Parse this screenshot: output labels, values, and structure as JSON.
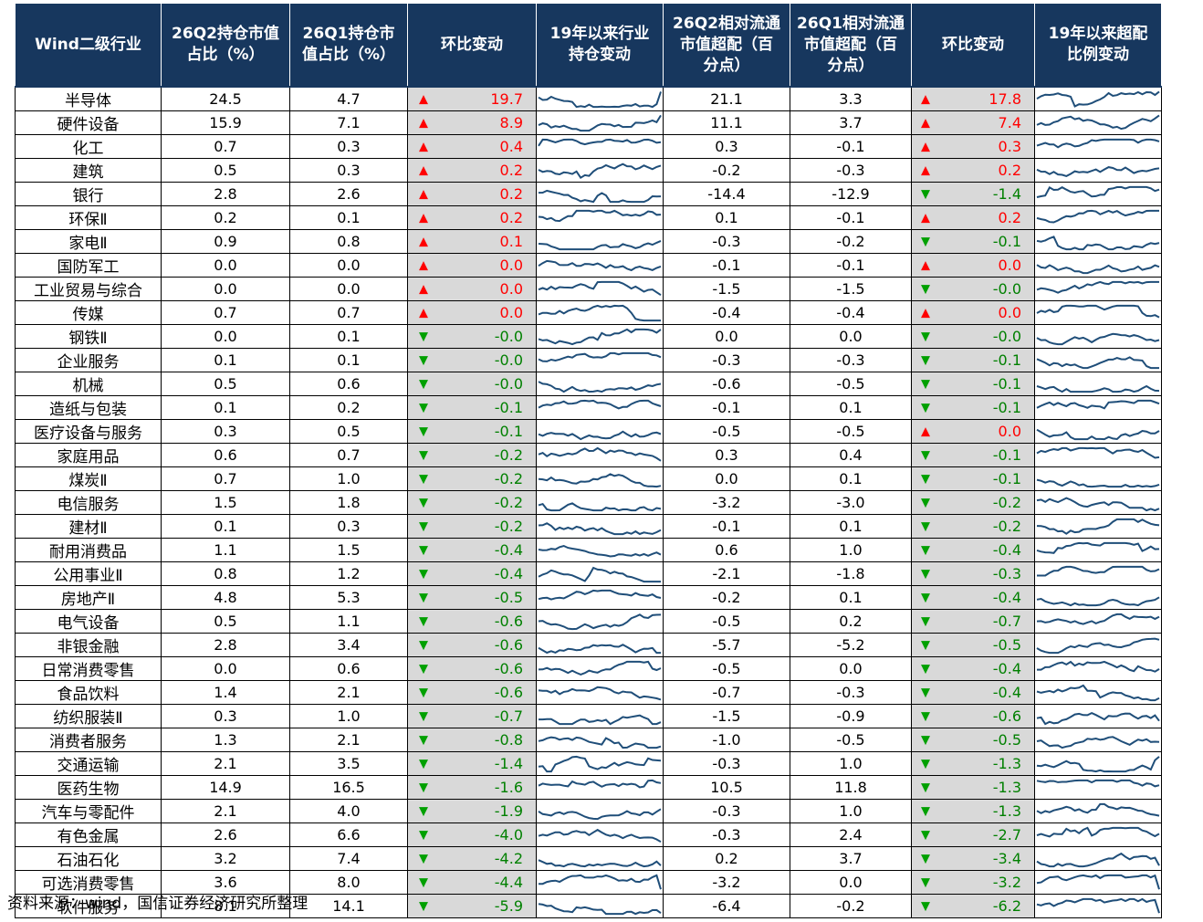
{
  "colors": {
    "header_bg": "#17375e",
    "up": "#ff0000",
    "down": "#008000",
    "change_bg": "#d9d9d9",
    "spark": "#1f4e79"
  },
  "chart_data": {
    "type": "table",
    "columns": [
      "Wind二级行业",
      "26Q2持仓市值占比（%）",
      "26Q1持仓市值占比（%）",
      "环比变动",
      "19年以来行业持仓变动",
      "26Q2相对流通市值超配（百分点）",
      "26Q1相对流通市值超配（百分点）",
      "环比变动",
      "19年以来超配比例变动"
    ],
    "rows": [
      {
        "name": "半导体",
        "h2": "24.5",
        "h1": "4.7",
        "hc": "19.7",
        "o2": "21.1",
        "o1": "3.3",
        "oc": "17.8"
      },
      {
        "name": "硬件设备",
        "h2": "15.9",
        "h1": "7.1",
        "hc": "8.9",
        "o2": "11.1",
        "o1": "3.7",
        "oc": "7.4"
      },
      {
        "name": "化工",
        "h2": "0.7",
        "h1": "0.3",
        "hc": "0.4",
        "o2": "0.3",
        "o1": "-0.1",
        "oc": "0.3"
      },
      {
        "name": "建筑",
        "h2": "0.5",
        "h1": "0.3",
        "hc": "0.2",
        "o2": "-0.2",
        "o1": "-0.3",
        "oc": "0.2"
      },
      {
        "name": "银行",
        "h2": "2.8",
        "h1": "2.6",
        "hc": "0.2",
        "o2": "-14.4",
        "o1": "-12.9",
        "oc": "-1.4"
      },
      {
        "name": "环保Ⅱ",
        "h2": "0.2",
        "h1": "0.1",
        "hc": "0.2",
        "o2": "0.1",
        "o1": "-0.1",
        "oc": "0.2"
      },
      {
        "name": "家电Ⅱ",
        "h2": "0.9",
        "h1": "0.8",
        "hc": "0.1",
        "o2": "-0.3",
        "o1": "-0.2",
        "oc": "-0.1"
      },
      {
        "name": "国防军工",
        "h2": "0.0",
        "h1": "0.0",
        "hc": "0.0",
        "o2": "-0.1",
        "o1": "-0.1",
        "oc": "0.0"
      },
      {
        "name": "工业贸易与综合",
        "h2": "0.0",
        "h1": "0.0",
        "hc": "0.0",
        "o2": "-1.5",
        "o1": "-1.5",
        "oc": "-0.0"
      },
      {
        "name": "传媒",
        "h2": "0.7",
        "h1": "0.7",
        "hc": "0.0",
        "o2": "-0.4",
        "o1": "-0.4",
        "oc": "0.0"
      },
      {
        "name": "钢铁Ⅱ",
        "h2": "0.0",
        "h1": "0.1",
        "hc": "-0.0",
        "o2": "0.0",
        "o1": "0.0",
        "oc": "-0.0"
      },
      {
        "name": "企业服务",
        "h2": "0.1",
        "h1": "0.1",
        "hc": "-0.0",
        "o2": "-0.3",
        "o1": "-0.3",
        "oc": "-0.1"
      },
      {
        "name": "机械",
        "h2": "0.5",
        "h1": "0.6",
        "hc": "-0.0",
        "o2": "-0.6",
        "o1": "-0.5",
        "oc": "-0.1"
      },
      {
        "name": "造纸与包装",
        "h2": "0.1",
        "h1": "0.2",
        "hc": "-0.1",
        "o2": "-0.1",
        "o1": "0.1",
        "oc": "-0.1"
      },
      {
        "name": "医疗设备与服务",
        "h2": "0.3",
        "h1": "0.5",
        "hc": "-0.1",
        "o2": "-0.5",
        "o1": "-0.5",
        "oc": "0.0"
      },
      {
        "name": "家庭用品",
        "h2": "0.6",
        "h1": "0.7",
        "hc": "-0.2",
        "o2": "0.3",
        "o1": "0.4",
        "oc": "-0.1"
      },
      {
        "name": "煤炭Ⅱ",
        "h2": "0.7",
        "h1": "1.0",
        "hc": "-0.2",
        "o2": "0.0",
        "o1": "0.1",
        "oc": "-0.1"
      },
      {
        "name": "电信服务",
        "h2": "1.5",
        "h1": "1.8",
        "hc": "-0.2",
        "o2": "-3.2",
        "o1": "-3.0",
        "oc": "-0.2"
      },
      {
        "name": "建材Ⅱ",
        "h2": "0.1",
        "h1": "0.3",
        "hc": "-0.2",
        "o2": "-0.1",
        "o1": "0.1",
        "oc": "-0.2"
      },
      {
        "name": "耐用消费品",
        "h2": "1.1",
        "h1": "1.5",
        "hc": "-0.4",
        "o2": "0.6",
        "o1": "1.0",
        "oc": "-0.4"
      },
      {
        "name": "公用事业Ⅱ",
        "h2": "0.8",
        "h1": "1.2",
        "hc": "-0.4",
        "o2": "-2.1",
        "o1": "-1.8",
        "oc": "-0.3"
      },
      {
        "name": "房地产Ⅱ",
        "h2": "4.8",
        "h1": "5.3",
        "hc": "-0.5",
        "o2": "-0.2",
        "o1": "0.1",
        "oc": "-0.4"
      },
      {
        "name": "电气设备",
        "h2": "0.5",
        "h1": "1.1",
        "hc": "-0.6",
        "o2": "-0.5",
        "o1": "0.2",
        "oc": "-0.7"
      },
      {
        "name": "非银金融",
        "h2": "2.8",
        "h1": "3.4",
        "hc": "-0.6",
        "o2": "-5.7",
        "o1": "-5.2",
        "oc": "-0.5"
      },
      {
        "name": "日常消费零售",
        "h2": "0.0",
        "h1": "0.6",
        "hc": "-0.6",
        "o2": "-0.5",
        "o1": "0.0",
        "oc": "-0.4"
      },
      {
        "name": "食品饮料",
        "h2": "1.4",
        "h1": "2.1",
        "hc": "-0.6",
        "o2": "-0.7",
        "o1": "-0.3",
        "oc": "-0.4"
      },
      {
        "name": "纺织服装Ⅱ",
        "h2": "0.3",
        "h1": "1.0",
        "hc": "-0.7",
        "o2": "-1.5",
        "o1": "-0.9",
        "oc": "-0.6"
      },
      {
        "name": "消费者服务",
        "h2": "1.3",
        "h1": "2.1",
        "hc": "-0.8",
        "o2": "-1.0",
        "o1": "-0.5",
        "oc": "-0.5"
      },
      {
        "name": "交通运输",
        "h2": "2.1",
        "h1": "3.5",
        "hc": "-1.4",
        "o2": "-0.3",
        "o1": "1.0",
        "oc": "-1.3"
      },
      {
        "name": "医药生物",
        "h2": "14.9",
        "h1": "16.5",
        "hc": "-1.6",
        "o2": "10.5",
        "o1": "11.8",
        "oc": "-1.3"
      },
      {
        "name": "汽车与零配件",
        "h2": "2.1",
        "h1": "4.0",
        "hc": "-1.9",
        "o2": "-0.3",
        "o1": "1.0",
        "oc": "-1.3"
      },
      {
        "name": "有色金属",
        "h2": "2.6",
        "h1": "6.6",
        "hc": "-4.0",
        "o2": "-0.3",
        "o1": "2.4",
        "oc": "-2.7"
      },
      {
        "name": "石油石化",
        "h2": "3.2",
        "h1": "7.4",
        "hc": "-4.2",
        "o2": "0.2",
        "o1": "3.7",
        "oc": "-3.4"
      },
      {
        "name": "可选消费零售",
        "h2": "3.6",
        "h1": "8.0",
        "hc": "-4.4",
        "o2": "-3.2",
        "o1": "0.0",
        "oc": "-3.2"
      },
      {
        "name": "软件服务",
        "h2": "8.1",
        "h1": "14.1",
        "hc": "-5.9",
        "o2": "-6.4",
        "o1": "-0.2",
        "oc": "-6.2"
      }
    ]
  },
  "header": {
    "c0": "Wind二级行业",
    "c1a": "26Q2持仓市值",
    "c1b": "占比（%）",
    "c2a": "26Q1持仓市",
    "c2b": "值占比（%）",
    "c3": "环比变动",
    "c4a": "19年以来行业",
    "c4b": "持仓变动",
    "c5a": "26Q2相对流通",
    "c5b": "市值超配（百",
    "c5c": "分点）",
    "c6a": "26Q1相对流通",
    "c6b": "市值超配（百",
    "c6c": "分点）",
    "c7": "环比变动",
    "c8a": "19年以来超配",
    "c8b": "比例变动"
  },
  "source": "资料来源：wind，国信证券经济研究所整理"
}
